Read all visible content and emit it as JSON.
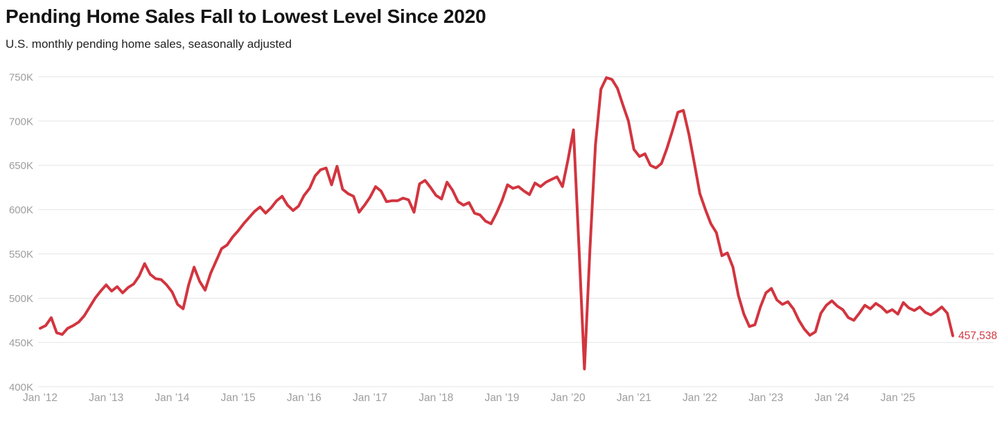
{
  "header": {
    "title": "Pending Home Sales Fall to Lowest Level Since 2020",
    "subtitle": "U.S. monthly pending home sales, seasonally adjusted"
  },
  "chart_data": {
    "type": "line",
    "title": "Pending Home Sales Fall to Lowest Level Since 2020",
    "subtitle": "U.S. monthly pending home sales, seasonally adjusted",
    "unit": "thousands of homes",
    "x_start": "Jan 2012",
    "x_end": "Nov 2025",
    "x_frequency": "monthly",
    "grid": "horizontal",
    "legend": "none",
    "line_color": "#d2353f",
    "grid_color": "#e4e4e4",
    "axis_label_color": "#9d9d9d",
    "ylim": [
      400,
      750
    ],
    "y_ticks": [
      {
        "label": "750K",
        "value": 750
      },
      {
        "label": "700K",
        "value": 700
      },
      {
        "label": "650K",
        "value": 650
      },
      {
        "label": "600K",
        "value": 600
      },
      {
        "label": "550K",
        "value": 550
      },
      {
        "label": "500K",
        "value": 500
      },
      {
        "label": "450K",
        "value": 450
      },
      {
        "label": "400K",
        "value": 400
      }
    ],
    "x_ticks": [
      {
        "label": "Jan ’12",
        "month_index": 0
      },
      {
        "label": "Jan ’13",
        "month_index": 12
      },
      {
        "label": "Jan ’14",
        "month_index": 24
      },
      {
        "label": "Jan ’15",
        "month_index": 36
      },
      {
        "label": "Jan ’16",
        "month_index": 48
      },
      {
        "label": "Jan ’17",
        "month_index": 60
      },
      {
        "label": "Jan ’18",
        "month_index": 72
      },
      {
        "label": "Jan ’19",
        "month_index": 84
      },
      {
        "label": "Jan ’20",
        "month_index": 96
      },
      {
        "label": "Jan ’21",
        "month_index": 108
      },
      {
        "label": "Jan ’22",
        "month_index": 120
      },
      {
        "label": "Jan ’23",
        "month_index": 132
      },
      {
        "label": "Jan ’24",
        "month_index": 144
      },
      {
        "label": "Jan ’25",
        "month_index": 156
      }
    ],
    "values": [
      466,
      469,
      478,
      461,
      459,
      466,
      469,
      473,
      480,
      490,
      500,
      508,
      515,
      508,
      513,
      506,
      512,
      516,
      525,
      539,
      527,
      522,
      521,
      515,
      507,
      493,
      488,
      515,
      535,
      519,
      509,
      528,
      542,
      556,
      560,
      569,
      576,
      584,
      591,
      598,
      603,
      596,
      602,
      610,
      615,
      605,
      599,
      604,
      616,
      624,
      638,
      645,
      647,
      628,
      649,
      623,
      618,
      615,
      597,
      605,
      614,
      626,
      621,
      609,
      610,
      610,
      613,
      611,
      597,
      629,
      633,
      625,
      616,
      612,
      631,
      622,
      609,
      605,
      608,
      596,
      594,
      587,
      584,
      596,
      610,
      628,
      624,
      626,
      621,
      617,
      630,
      626,
      631,
      634,
      637,
      626,
      656,
      690,
      558,
      420,
      556,
      673,
      736,
      749,
      747,
      737,
      718,
      700,
      668,
      660,
      663,
      650,
      647,
      652,
      669,
      689,
      710,
      712,
      685,
      652,
      618,
      600,
      584,
      574,
      548,
      551,
      535,
      503,
      482,
      468,
      470,
      490,
      506,
      511,
      498,
      493,
      496,
      488,
      475,
      465,
      458,
      462,
      483,
      492,
      497,
      491,
      487,
      478,
      475,
      483,
      492,
      488,
      494,
      490,
      484,
      487,
      482,
      495,
      489,
      486,
      490,
      484,
      481,
      485,
      490,
      483,
      457.538
    ],
    "last_value": 457538,
    "last_value_label": "457,538"
  }
}
